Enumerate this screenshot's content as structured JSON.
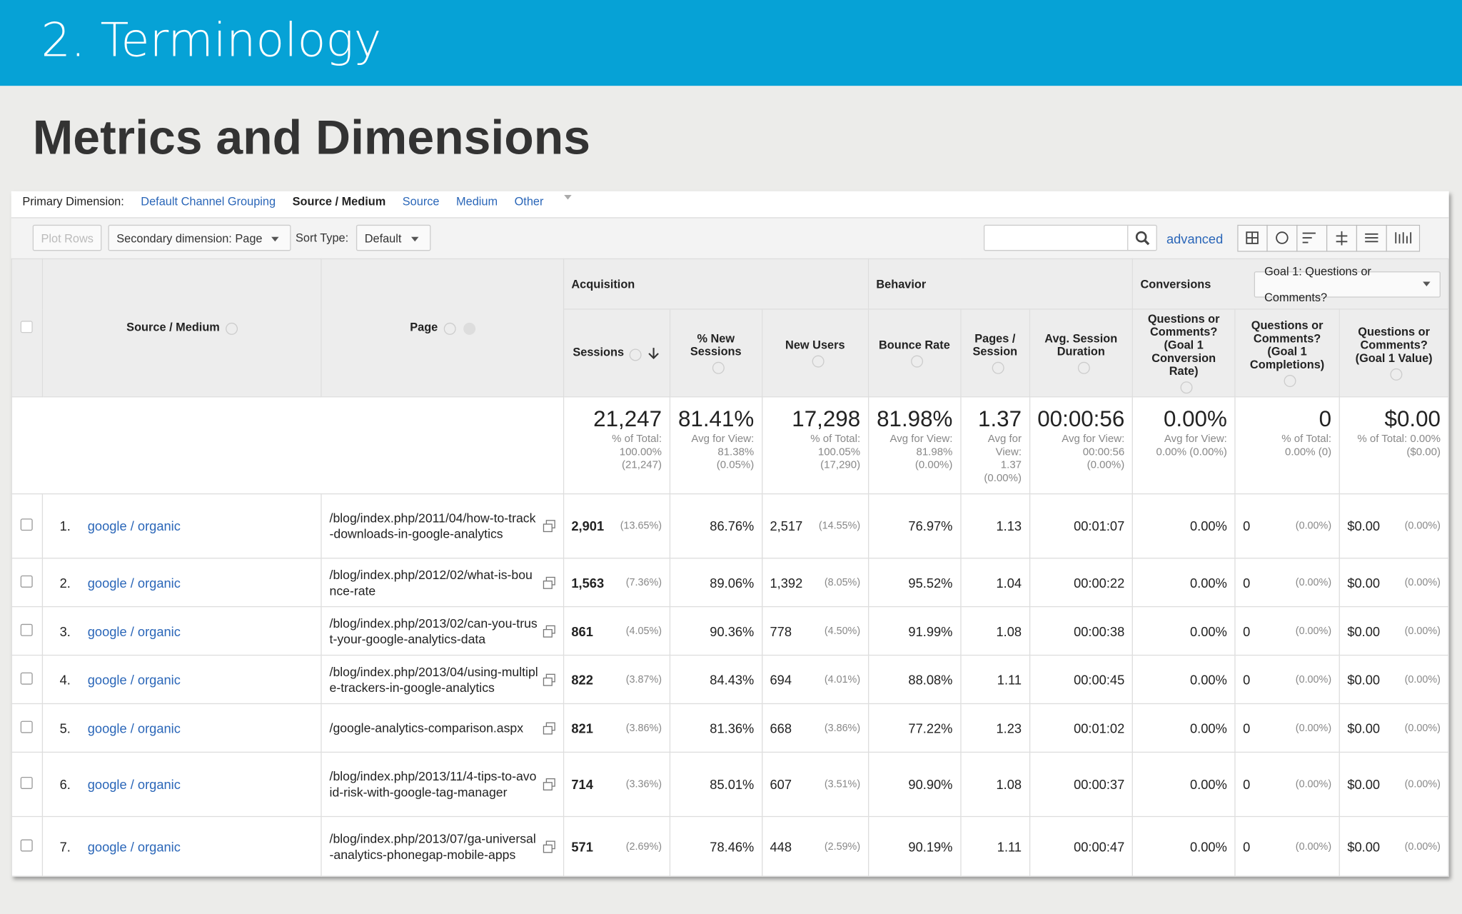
{
  "slide": {
    "header": "2. Terminology",
    "title": "Metrics and Dimensions"
  },
  "dimension_bar": {
    "label": "Primary Dimension:",
    "options": [
      "Default Channel Grouping",
      "Source / Medium",
      "Source",
      "Medium",
      "Other"
    ]
  },
  "toolbar": {
    "plot_rows": "Plot Rows",
    "secondary": "Secondary dimension: Page",
    "sort_label": "Sort Type:",
    "sort": "Default",
    "advanced": "advanced"
  },
  "table": {
    "groups": [
      {
        "name": "Acquisition"
      },
      {
        "name": "Behavior"
      },
      {
        "name": "Conversions",
        "select": "Goal 1: Questions or Comments?"
      }
    ],
    "columns": [
      "Source / Medium",
      "Page",
      "Sessions",
      "% New Sessions",
      "New Users",
      "Bounce Rate",
      "Pages / Session",
      "Avg. Session Duration",
      "Questions or Comments? (Goal 1 Conversion Rate)",
      "Questions or Comments? (Goal 1 Completions)",
      "Questions or Comments? (Goal 1 Value)"
    ],
    "totals": [
      {
        "value": "21,247",
        "note": "% of Total: 100.00% (21,247)"
      },
      {
        "value": "81.41%",
        "note": "Avg for View: 81.38% (0.05%)"
      },
      {
        "value": "17,298",
        "note": "% of Total: 100.05% (17,290)"
      },
      {
        "value": "81.98%",
        "note": "Avg for View: 81.98% (0.00%)"
      },
      {
        "value": "1.37",
        "note": "Avg for View: 1.37 (0.00%)"
      },
      {
        "value": "00:00:56",
        "note": "Avg for View: 00:00:56 (0.00%)"
      },
      {
        "value": "0.00%",
        "note": "Avg for View: 0.00% (0.00%)"
      },
      {
        "value": "0",
        "note": "% of Total: 0.00% (0)"
      },
      {
        "value": "$0.00",
        "note": "% of Total: 0.00% ($0.00)"
      }
    ],
    "rows": [
      {
        "number": "1.",
        "source": "google / organic",
        "page": "/blog/index.php/2011/04/how-to-track-downloads-in-google-analytics",
        "sessions": "2,901",
        "sessions_share": "(13.65%)",
        "new_sessions": "86.76%",
        "new_users": "2,517",
        "new_users_share": "(14.55%)",
        "bounce_rate": "76.97%",
        "pages_per_session": "1.13",
        "avg_duration": "00:01:07",
        "conversion_rate": "0.00%",
        "completions": "0",
        "completions_share": "(0.00%)",
        "value": "$0.00",
        "value_share": "(0.00%)"
      },
      {
        "number": "2.",
        "source": "google / organic",
        "page": "/blog/index.php/2012/02/what-is-bounce-rate",
        "sessions": "1,563",
        "sessions_share": "(7.36%)",
        "new_sessions": "89.06%",
        "new_users": "1,392",
        "new_users_share": "(8.05%)",
        "bounce_rate": "95.52%",
        "pages_per_session": "1.04",
        "avg_duration": "00:00:22",
        "conversion_rate": "0.00%",
        "completions": "0",
        "completions_share": "(0.00%)",
        "value": "$0.00",
        "value_share": "(0.00%)"
      },
      {
        "number": "3.",
        "source": "google / organic",
        "page": "/blog/index.php/2013/02/can-you-trust-your-google-analytics-data",
        "sessions": "861",
        "sessions_share": "(4.05%)",
        "new_sessions": "90.36%",
        "new_users": "778",
        "new_users_share": "(4.50%)",
        "bounce_rate": "91.99%",
        "pages_per_session": "1.08",
        "avg_duration": "00:00:38",
        "conversion_rate": "0.00%",
        "completions": "0",
        "completions_share": "(0.00%)",
        "value": "$0.00",
        "value_share": "(0.00%)"
      },
      {
        "number": "4.",
        "source": "google / organic",
        "page": "/blog/index.php/2013/04/using-multiple-trackers-in-google-analytics",
        "sessions": "822",
        "sessions_share": "(3.87%)",
        "new_sessions": "84.43%",
        "new_users": "694",
        "new_users_share": "(4.01%)",
        "bounce_rate": "88.08%",
        "pages_per_session": "1.11",
        "avg_duration": "00:00:45",
        "conversion_rate": "0.00%",
        "completions": "0",
        "completions_share": "(0.00%)",
        "value": "$0.00",
        "value_share": "(0.00%)"
      },
      {
        "number": "5.",
        "source": "google / organic",
        "page": "/google-analytics-comparison.aspx",
        "sessions": "821",
        "sessions_share": "(3.86%)",
        "new_sessions": "81.36%",
        "new_users": "668",
        "new_users_share": "(3.86%)",
        "bounce_rate": "77.22%",
        "pages_per_session": "1.23",
        "avg_duration": "00:01:02",
        "conversion_rate": "0.00%",
        "completions": "0",
        "completions_share": "(0.00%)",
        "value": "$0.00",
        "value_share": "(0.00%)"
      },
      {
        "number": "6.",
        "source": "google / organic",
        "page": "/blog/index.php/2013/11/4-tips-to-avoid-risk-with-google-tag-manager",
        "sessions": "714",
        "sessions_share": "(3.36%)",
        "new_sessions": "85.01%",
        "new_users": "607",
        "new_users_share": "(3.51%)",
        "bounce_rate": "90.90%",
        "pages_per_session": "1.08",
        "avg_duration": "00:00:37",
        "conversion_rate": "0.00%",
        "completions": "0",
        "completions_share": "(0.00%)",
        "value": "$0.00",
        "value_share": "(0.00%)"
      },
      {
        "number": "7.",
        "source": "google / organic",
        "page": "/blog/index.php/2013/07/ga-universal-analytics-phonegap-mobile-apps",
        "sessions": "571",
        "sessions_share": "(2.69%)",
        "new_sessions": "78.46%",
        "new_users": "448",
        "new_users_share": "(2.59%)",
        "bounce_rate": "90.19%",
        "pages_per_session": "1.11",
        "avg_duration": "00:00:47",
        "conversion_rate": "0.00%",
        "completions": "0",
        "completions_share": "(0.00%)",
        "value": "$0.00",
        "value_share": "(0.00%)"
      }
    ]
  }
}
